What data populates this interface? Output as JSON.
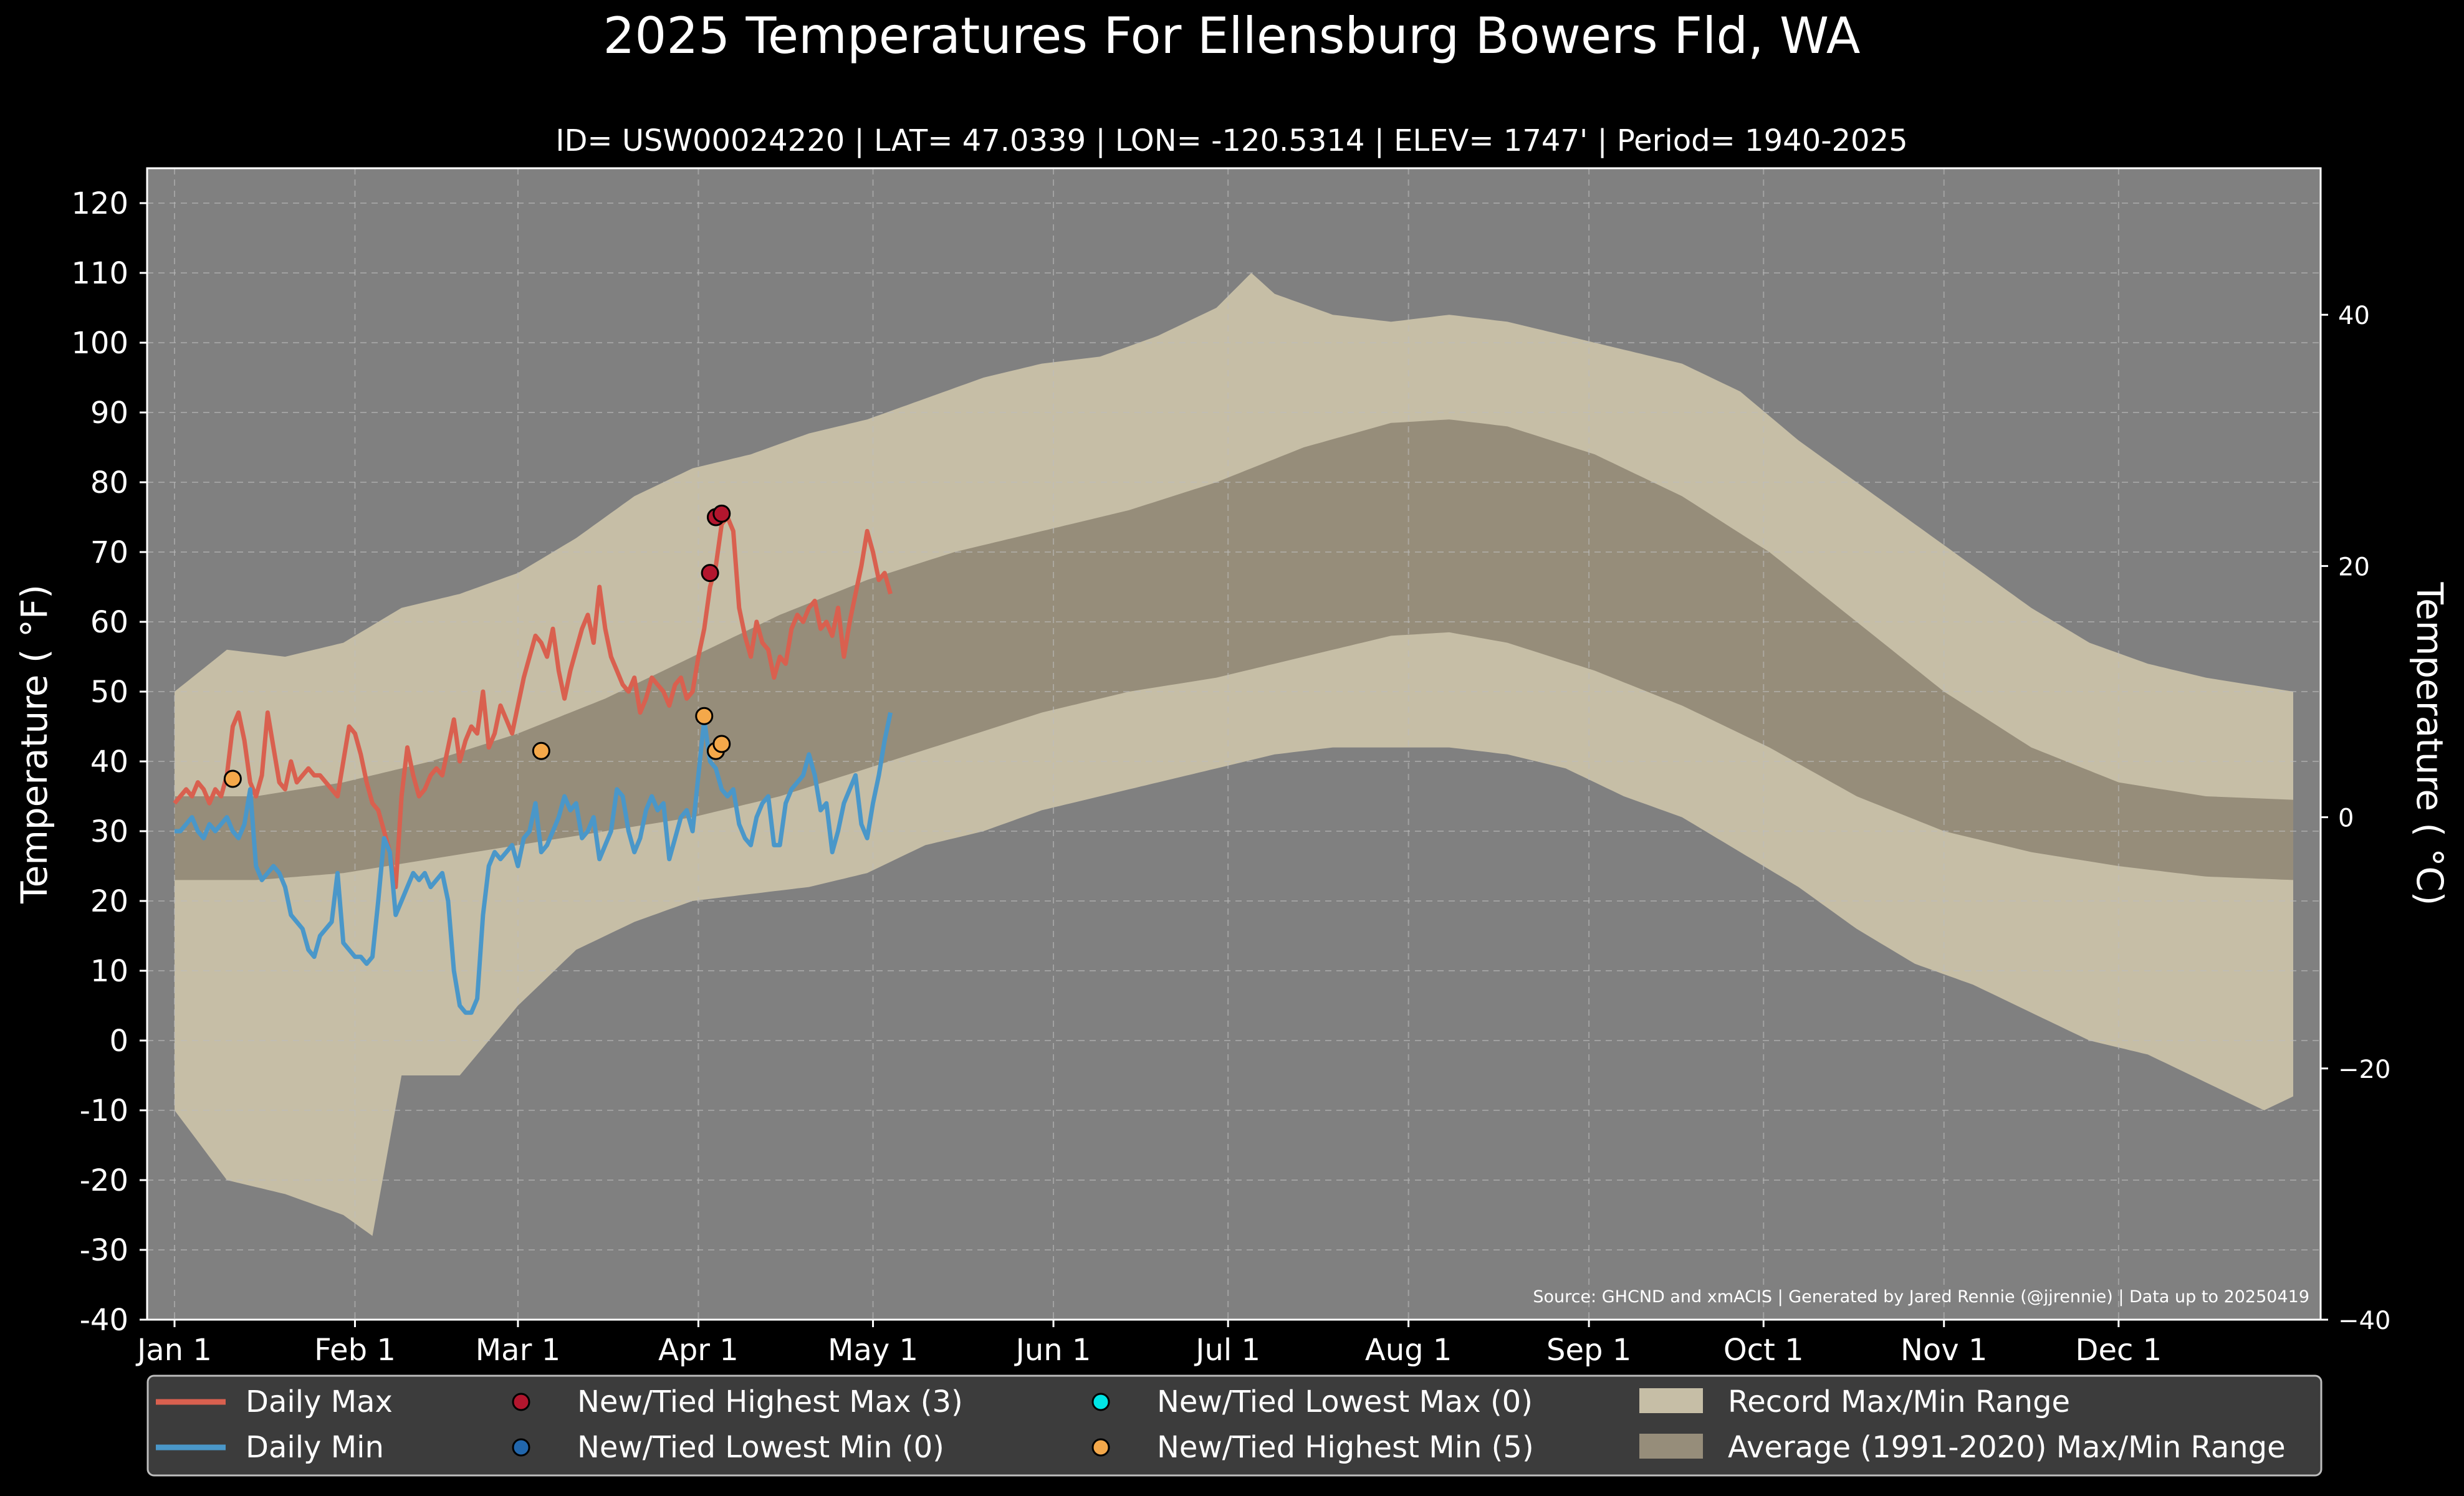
{
  "chart_data": {
    "type": "line",
    "title": "2025 Temperatures For Ellensburg Bowers Fld, WA",
    "subtitle": "ID= USW00024220 | LAT= 47.0339 | LON= -120.5314 | ELEV= 1747' | Period= 1940-2025",
    "ylabel": "Temperature ( °F)",
    "ylabel_right": "Temperature ( °C)",
    "source": "Source: GHCND and xmACIS | Generated by Jared Rennie (@jjrennie) | Data up to 20250419",
    "ylim": [
      -40,
      125
    ],
    "yticks": [
      120,
      110,
      100,
      90,
      80,
      70,
      60,
      50,
      40,
      30,
      20,
      10,
      0,
      -10,
      -20,
      -30,
      -40
    ],
    "yticks_c": [
      40,
      20,
      0,
      -20,
      -40
    ],
    "month_ticks": [
      {
        "label": "Jan 1",
        "day": 1
      },
      {
        "label": "Feb 1",
        "day": 32
      },
      {
        "label": "Mar 1",
        "day": 60
      },
      {
        "label": "Apr 1",
        "day": 91
      },
      {
        "label": "May 1",
        "day": 121
      },
      {
        "label": "Jun 1",
        "day": 152
      },
      {
        "label": "Jul 1",
        "day": 182
      },
      {
        "label": "Aug 1",
        "day": 213
      },
      {
        "label": "Sep 1",
        "day": 244
      },
      {
        "label": "Oct 1",
        "day": 274
      },
      {
        "label": "Nov 1",
        "day": 305
      },
      {
        "label": "Dec 1",
        "day": 335
      }
    ],
    "xlim": [
      1,
      365
    ],
    "grid": true,
    "legend_position": "bottom",
    "record_max_points": [
      [
        1,
        50
      ],
      [
        10,
        56
      ],
      [
        20,
        55
      ],
      [
        30,
        57
      ],
      [
        40,
        62
      ],
      [
        50,
        64
      ],
      [
        60,
        67
      ],
      [
        70,
        72
      ],
      [
        80,
        78
      ],
      [
        90,
        82
      ],
      [
        100,
        84
      ],
      [
        110,
        87
      ],
      [
        120,
        89
      ],
      [
        130,
        92
      ],
      [
        140,
        95
      ],
      [
        150,
        97
      ],
      [
        160,
        98
      ],
      [
        170,
        101
      ],
      [
        180,
        105
      ],
      [
        186,
        110
      ],
      [
        190,
        107
      ],
      [
        200,
        104
      ],
      [
        210,
        103
      ],
      [
        220,
        104
      ],
      [
        230,
        103
      ],
      [
        240,
        101
      ],
      [
        250,
        99
      ],
      [
        260,
        97
      ],
      [
        270,
        93
      ],
      [
        280,
        86
      ],
      [
        290,
        80
      ],
      [
        300,
        74
      ],
      [
        310,
        68
      ],
      [
        320,
        62
      ],
      [
        330,
        57
      ],
      [
        340,
        54
      ],
      [
        350,
        52
      ],
      [
        365,
        50
      ]
    ],
    "record_min_points": [
      [
        1,
        -10
      ],
      [
        10,
        -20
      ],
      [
        20,
        -22
      ],
      [
        30,
        -25
      ],
      [
        35,
        -28
      ],
      [
        40,
        -5
      ],
      [
        50,
        -5
      ],
      [
        60,
        5
      ],
      [
        70,
        13
      ],
      [
        80,
        17
      ],
      [
        90,
        20
      ],
      [
        100,
        21
      ],
      [
        110,
        22
      ],
      [
        120,
        24
      ],
      [
        130,
        28
      ],
      [
        140,
        30
      ],
      [
        150,
        33
      ],
      [
        160,
        35
      ],
      [
        170,
        37
      ],
      [
        180,
        39
      ],
      [
        190,
        41
      ],
      [
        200,
        42
      ],
      [
        210,
        42
      ],
      [
        220,
        42
      ],
      [
        230,
        41
      ],
      [
        240,
        39
      ],
      [
        250,
        35
      ],
      [
        260,
        32
      ],
      [
        270,
        27
      ],
      [
        280,
        22
      ],
      [
        290,
        16
      ],
      [
        300,
        11
      ],
      [
        310,
        8
      ],
      [
        320,
        4
      ],
      [
        330,
        0
      ],
      [
        340,
        -2
      ],
      [
        350,
        -6
      ],
      [
        360,
        -10
      ],
      [
        365,
        -8
      ]
    ],
    "avg_max_points": [
      [
        1,
        35
      ],
      [
        15,
        35
      ],
      [
        30,
        37
      ],
      [
        45,
        40
      ],
      [
        60,
        44
      ],
      [
        75,
        49
      ],
      [
        90,
        55
      ],
      [
        105,
        61
      ],
      [
        120,
        66
      ],
      [
        135,
        70
      ],
      [
        150,
        73
      ],
      [
        165,
        76
      ],
      [
        180,
        80
      ],
      [
        195,
        85
      ],
      [
        210,
        88.5
      ],
      [
        220,
        89
      ],
      [
        230,
        88
      ],
      [
        245,
        84
      ],
      [
        260,
        78
      ],
      [
        275,
        70
      ],
      [
        290,
        60
      ],
      [
        305,
        50
      ],
      [
        320,
        42
      ],
      [
        335,
        37
      ],
      [
        350,
        35
      ],
      [
        365,
        34.5
      ]
    ],
    "avg_min_points": [
      [
        1,
        23
      ],
      [
        15,
        23
      ],
      [
        30,
        24
      ],
      [
        45,
        26
      ],
      [
        60,
        28
      ],
      [
        75,
        30
      ],
      [
        90,
        32
      ],
      [
        105,
        35
      ],
      [
        120,
        39
      ],
      [
        135,
        43
      ],
      [
        150,
        47
      ],
      [
        165,
        50
      ],
      [
        180,
        52
      ],
      [
        195,
        55
      ],
      [
        210,
        58
      ],
      [
        220,
        58.5
      ],
      [
        230,
        57
      ],
      [
        245,
        53
      ],
      [
        260,
        48
      ],
      [
        275,
        42
      ],
      [
        290,
        35
      ],
      [
        305,
        30
      ],
      [
        320,
        27
      ],
      [
        335,
        25
      ],
      [
        350,
        23.5
      ],
      [
        365,
        23
      ]
    ],
    "series": [
      {
        "name": "Daily Max",
        "color": "#d9604f",
        "values": [
          34,
          35,
          36,
          35,
          37,
          36,
          34,
          36,
          35,
          38,
          45,
          47,
          43,
          37,
          35,
          38,
          47,
          42,
          37,
          36,
          40,
          37,
          38,
          39,
          38,
          38,
          37,
          36,
          35,
          40,
          45,
          44,
          41,
          37,
          34,
          33,
          30,
          27,
          22,
          35,
          42,
          38,
          35,
          36,
          38,
          39,
          38,
          42,
          46,
          40,
          43,
          45,
          44,
          50,
          42,
          44,
          48,
          46,
          44,
          48,
          52,
          55,
          58,
          57,
          55,
          59,
          53,
          49,
          53,
          56,
          59,
          61,
          57,
          65,
          59,
          55,
          53,
          51,
          50,
          52,
          47,
          49,
          52,
          51,
          50,
          48,
          51,
          52,
          49,
          50,
          55,
          59,
          65,
          68,
          74,
          75,
          73,
          62,
          58,
          55,
          60,
          57,
          56,
          52,
          55,
          54,
          59,
          61,
          60,
          62,
          63,
          59,
          60,
          58,
          62,
          55,
          60,
          64,
          68,
          73,
          70,
          66,
          67,
          64
        ]
      },
      {
        "name": "Daily Min",
        "color": "#4a97c9",
        "values": [
          30,
          30,
          31,
          32,
          30,
          29,
          31,
          30,
          31,
          32,
          30,
          29,
          31,
          36,
          25,
          23,
          24,
          25,
          24,
          22,
          18,
          17,
          16,
          13,
          12,
          15,
          16,
          17,
          24,
          14,
          13,
          12,
          12,
          11,
          12,
          20,
          29,
          27,
          18,
          20,
          22,
          24,
          23,
          24,
          22,
          23,
          24,
          20,
          10,
          5,
          4,
          4,
          6,
          18,
          25,
          27,
          26,
          27,
          28,
          25,
          29,
          30,
          34,
          27,
          28,
          30,
          32,
          35,
          33,
          34,
          29,
          30,
          32,
          26,
          28,
          30,
          36,
          35,
          30,
          27,
          29,
          33,
          35,
          33,
          34,
          26,
          29,
          32,
          33,
          30,
          38,
          46,
          40,
          39,
          36,
          35,
          36,
          31,
          29,
          28,
          32,
          34,
          35,
          28,
          28,
          34,
          36,
          37,
          38,
          41,
          38,
          33,
          34,
          27,
          30,
          34,
          36,
          38,
          31,
          29,
          34,
          38,
          43,
          47
        ]
      }
    ],
    "record_markers": [
      {
        "name": "New/Tied Highest Max (3)",
        "color": "#b3162e",
        "points": [
          [
            93,
            67
          ],
          [
            94,
            75
          ],
          [
            95,
            75.5
          ]
        ]
      },
      {
        "name": "New/Tied Lowest Min (0)",
        "color": "#2166ac",
        "points": []
      },
      {
        "name": "New/Tied Lowest Max (0)",
        "color": "#00e5e5",
        "points": []
      },
      {
        "name": "New/Tied Highest Min (5)",
        "color": "#f4a84a",
        "points": [
          [
            11,
            37.5
          ],
          [
            64,
            41.5
          ],
          [
            92,
            46.5
          ],
          [
            94,
            41.5
          ],
          [
            95,
            42.5
          ]
        ]
      }
    ],
    "ranges": [
      {
        "name": "Record Max/Min Range",
        "color": "#c6bea6"
      },
      {
        "name": "Average (1991-2020) Max/Min Range",
        "color": "#968d7a"
      }
    ]
  },
  "colors": {
    "background": "#000000",
    "plot_bg": "#808080",
    "record": "#c6bea6",
    "average": "#968d7a"
  }
}
